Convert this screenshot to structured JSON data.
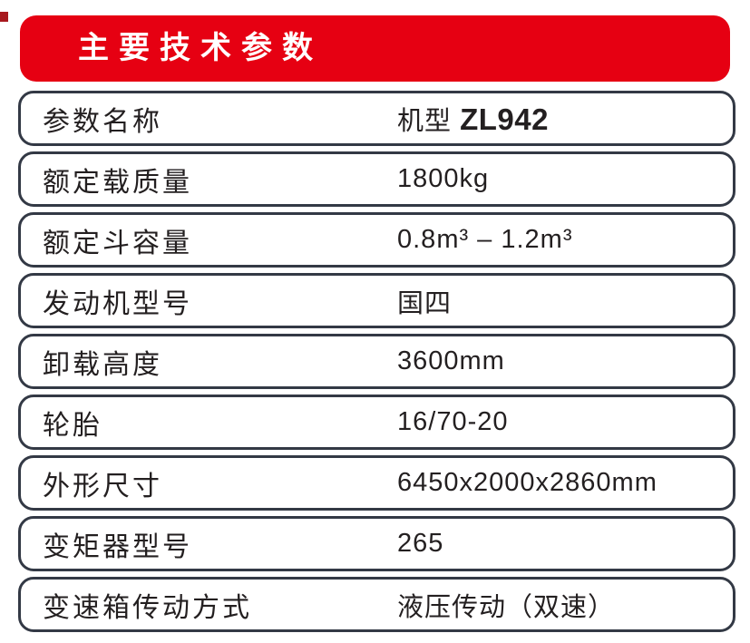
{
  "colors": {
    "banner_red": "#e60012",
    "corner_dark_red": "#a8191e",
    "row_border": "#333945",
    "text": "#231f20",
    "background": "#ffffff"
  },
  "header": {
    "title": "主要技术参数"
  },
  "table": {
    "rows": [
      {
        "label": "参数名称",
        "value": "",
        "value_prefix": "机型 ",
        "value_bold": "ZL942"
      },
      {
        "label": "额定载质量",
        "value": "1800kg"
      },
      {
        "label": "额定斗容量",
        "value": "0.8m³ – 1.2m³"
      },
      {
        "label": "发动机型号",
        "value": "国四"
      },
      {
        "label": "卸载高度",
        "value": "3600mm"
      },
      {
        "label": "轮胎",
        "value": "16/70-20"
      },
      {
        "label": "外形尺寸",
        "value": "6450x2000x2860mm"
      },
      {
        "label": "变矩器型号",
        "value": "265"
      },
      {
        "label": "变速箱传动方式",
        "value": "液压传动（双速）"
      }
    ]
  }
}
